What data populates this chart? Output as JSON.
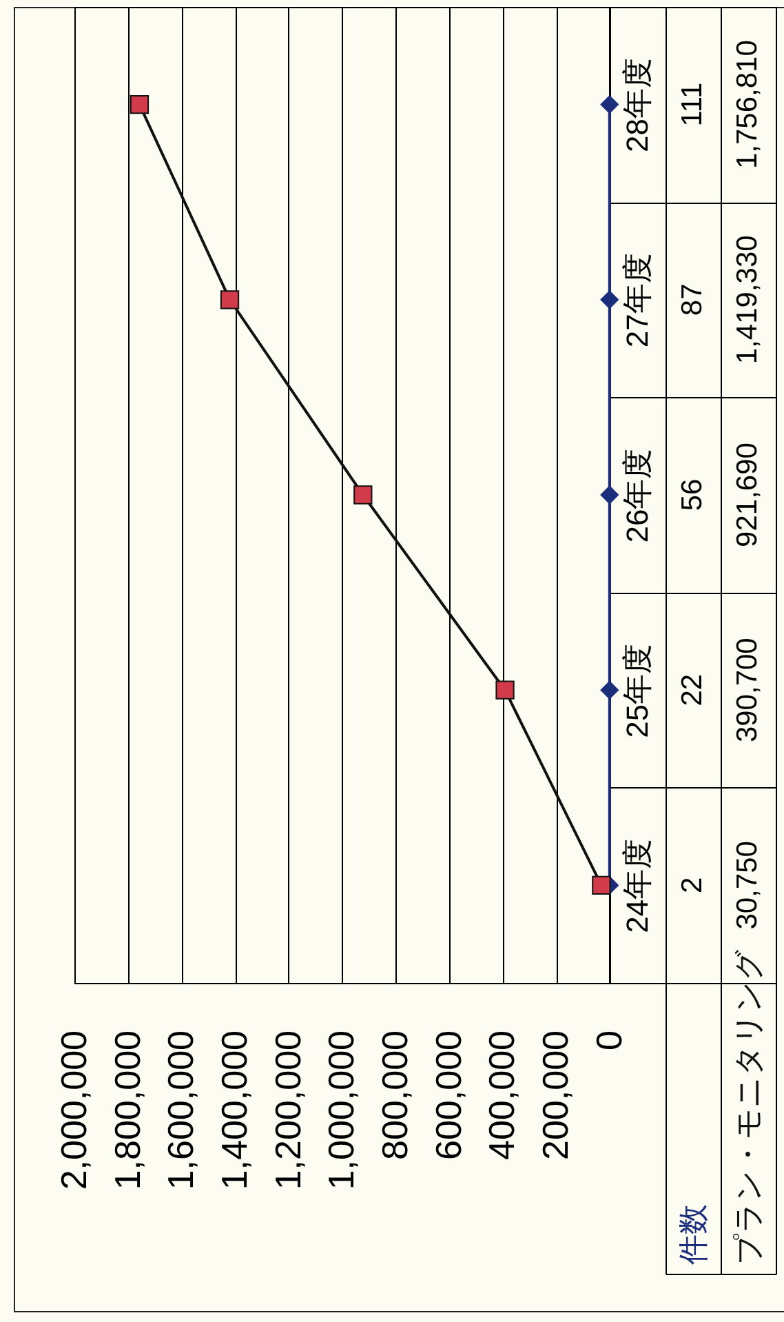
{
  "chart_data": {
    "type": "line",
    "orientation": "horizontal",
    "categories": [
      "28年度",
      "27年度",
      "26年度",
      "25年度",
      "24年度"
    ],
    "series": [
      {
        "name": "件数",
        "color": "#1b2e7c",
        "marker": "diamond",
        "values": [
          111,
          87,
          56,
          22,
          2
        ],
        "value_labels": [
          "111",
          "87",
          "56",
          "22",
          "2"
        ]
      },
      {
        "name": "プラン・モニタリング",
        "color": "#111111",
        "colors": [
          "#d23c4a",
          "#d23c4a",
          "#d23c4a",
          "#d23c4a",
          "#d23c4a"
        ],
        "marker": "square",
        "values": [
          1756810,
          1419330,
          921690,
          390700,
          30750
        ],
        "value_labels": [
          "1,756,810",
          "1,419,330",
          "921,690",
          "390,700",
          "30,750"
        ]
      }
    ],
    "xlim": [
      2000000,
      0
    ],
    "xticks": [
      {
        "value": 2000000,
        "label": "2,000,000"
      },
      {
        "value": 1800000,
        "label": "1,800,000"
      },
      {
        "value": 1600000,
        "label": "1,600,000"
      },
      {
        "value": 1400000,
        "label": "1,400,000"
      },
      {
        "value": 1200000,
        "label": "1,200,000"
      },
      {
        "value": 1000000,
        "label": "1,000,000"
      },
      {
        "value": 800000,
        "label": "800,000"
      },
      {
        "value": 600000,
        "label": "600,000"
      },
      {
        "value": 400000,
        "label": "400,000"
      },
      {
        "value": 200000,
        "label": "200,000"
      },
      0
    ],
    "grid": "x"
  }
}
